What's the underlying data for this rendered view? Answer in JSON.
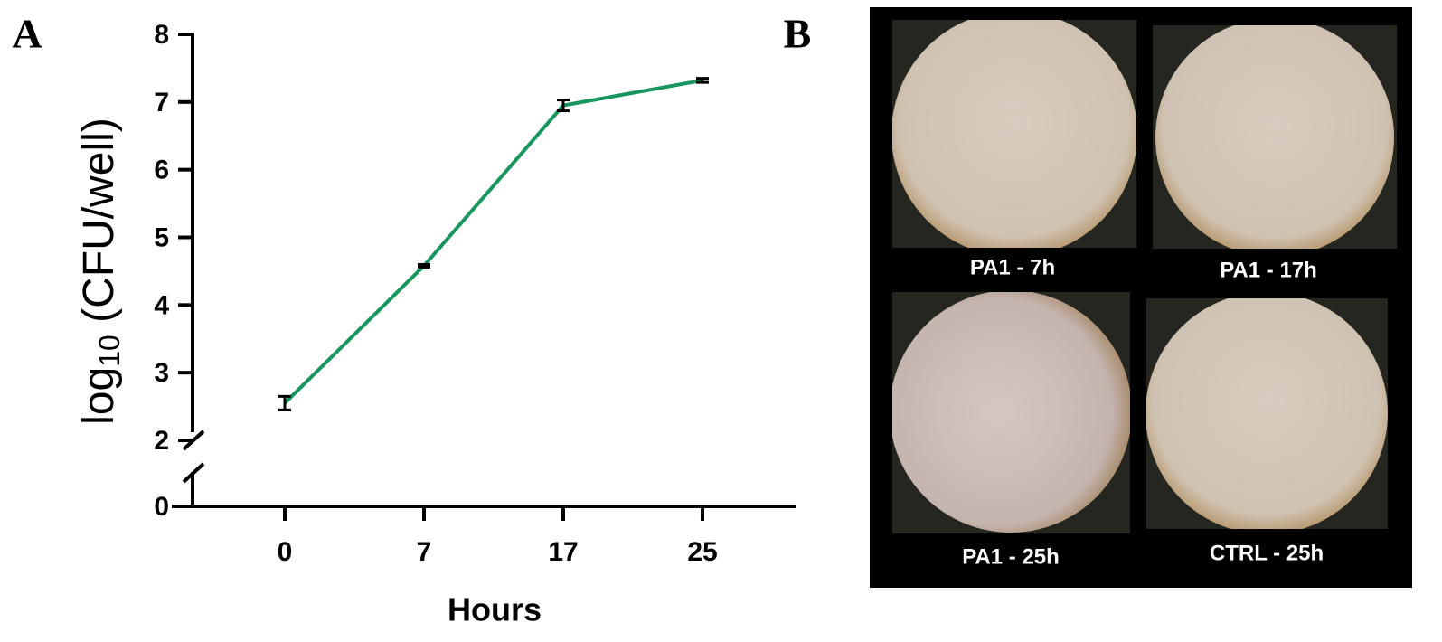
{
  "panel_labels": [
    "A",
    "B"
  ],
  "chart_data": {
    "type": "line",
    "xlabel": "Hours",
    "ylabel": {
      "base": "log",
      "subscript": "10",
      "rest": " (CFU/well)"
    },
    "categories": [
      "0",
      "7",
      "17",
      "25"
    ],
    "values": [
      2.55,
      4.58,
      6.95,
      7.32
    ],
    "errors": [
      0.1,
      0.02,
      0.08,
      0.03
    ],
    "color": "#17965f",
    "ylim": [
      0,
      8
    ],
    "yticks": [
      0,
      2,
      3,
      4,
      5,
      6,
      7,
      8
    ],
    "axis_break": true,
    "grid": false
  },
  "images": {
    "captions": [
      "PA1 - 7h",
      "PA1 - 17h",
      "PA1 - 25h",
      "CTRL - 25h"
    ]
  }
}
